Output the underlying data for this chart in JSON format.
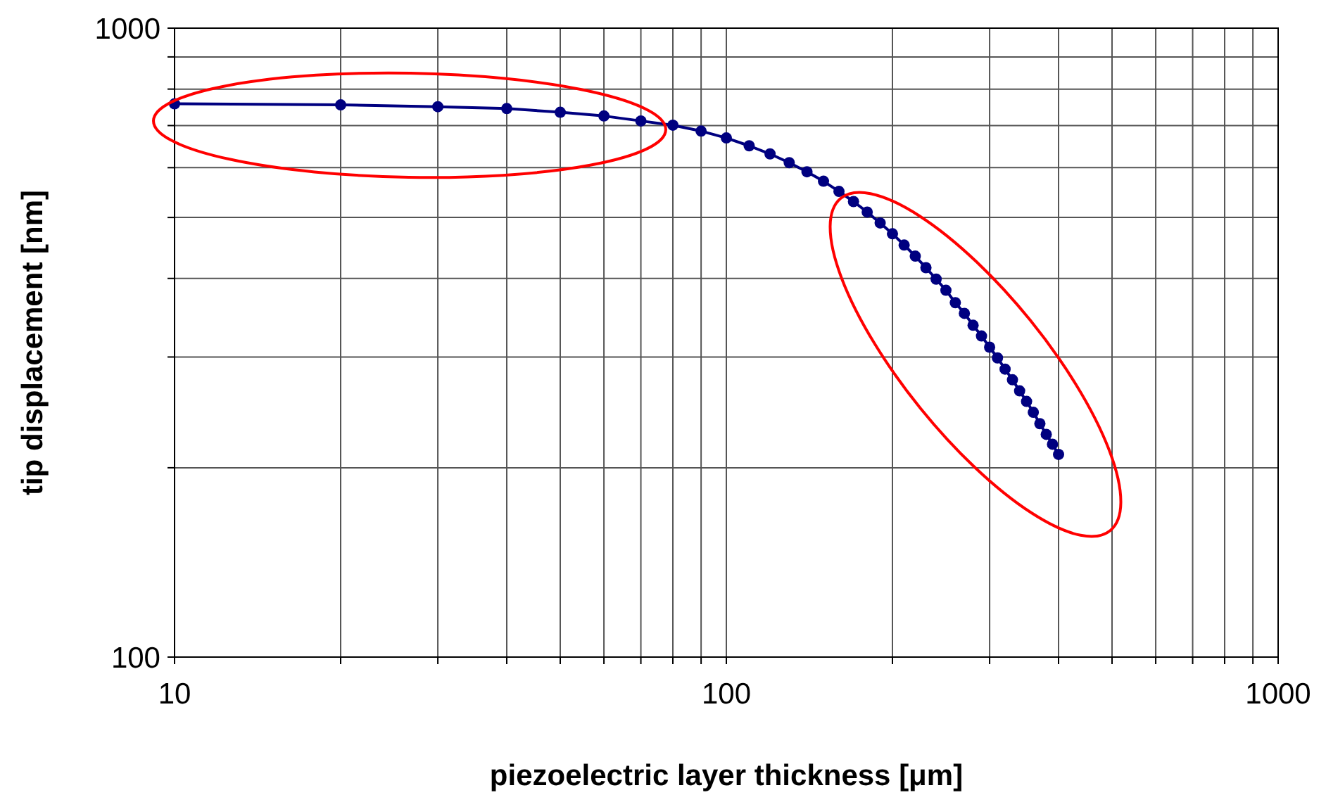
{
  "chart_data": {
    "type": "line",
    "xlabel": "piezoelectric layer thickness [μm]",
    "ylabel": "tip displacement [nm]",
    "log": "xy",
    "grid": true,
    "marker": "circle",
    "line_style": "solid",
    "xlim": [
      10,
      1000
    ],
    "ylim": [
      100,
      1000
    ],
    "xticks": [
      10,
      {
        "value": 20,
        "label": null
      },
      {
        "value": 30,
        "label": null
      },
      {
        "value": 40,
        "label": null
      },
      {
        "value": 50,
        "label": null
      },
      {
        "value": 60,
        "label": null
      },
      {
        "value": 70,
        "label": null
      },
      {
        "value": 80,
        "label": null
      },
      {
        "value": 90,
        "label": null
      },
      100,
      {
        "value": 200,
        "label": null
      },
      {
        "value": 300,
        "label": null
      },
      {
        "value": 400,
        "label": null
      },
      {
        "value": 500,
        "label": null
      },
      {
        "value": 600,
        "label": null
      },
      {
        "value": 700,
        "label": null
      },
      {
        "value": 800,
        "label": null
      },
      {
        "value": 900,
        "label": null
      },
      1000
    ],
    "yticks": [
      100,
      {
        "value": 200,
        "label": null
      },
      {
        "value": 300,
        "label": null
      },
      {
        "value": 400,
        "label": null
      },
      {
        "value": 500,
        "label": null
      },
      {
        "value": 600,
        "label": null
      },
      {
        "value": 700,
        "label": null
      },
      {
        "value": 800,
        "label": null
      },
      {
        "value": 900,
        "label": null
      },
      1000
    ],
    "x": [
      10,
      20,
      30,
      40,
      50,
      60,
      70,
      80,
      90,
      100,
      110,
      120,
      130,
      140,
      150,
      160,
      170,
      180,
      190,
      200,
      210,
      220,
      230,
      240,
      250,
      260,
      270,
      280,
      290,
      300,
      310,
      320,
      330,
      340,
      350,
      360,
      370,
      380,
      390,
      400
    ],
    "series": [
      {
        "color": "#000080",
        "values": [
          758,
          755,
          750,
          745,
          735,
          725,
          712,
          701,
          686,
          669,
          650,
          631,
          611,
          591,
          571,
          550,
          530,
          510,
          490,
          471,
          452,
          434,
          416,
          399,
          383,
          366,
          352,
          337,
          324,
          311,
          299,
          287,
          276,
          265,
          255,
          245,
          235,
          226,
          218,
          210
        ]
      }
    ]
  }
}
